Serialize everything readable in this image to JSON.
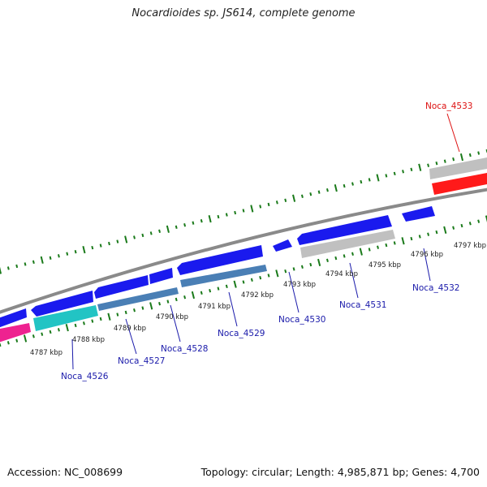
{
  "title": "Nocardioides sp. JS614, complete genome",
  "footer": {
    "accession_label": "Accession: NC_008699",
    "summary_label": "Topology: circular; Length: 4,985,871 bp; Genes: 4,700"
  },
  "colors": {
    "tick": "#1a7a1a",
    "backbone": "#8a8a8a",
    "gene_blue": "#1a1aee",
    "gene_cyan": "#22c4c4",
    "gene_grey": "#c0c0c0",
    "gene_red": "#ff1a1a",
    "gene_pink": "#ee2290",
    "gene_steel": "#4a7fb5",
    "label_blue": "#1a1aaa",
    "label_red": "#dd1111"
  },
  "scale_labels": [
    "4787 kbp",
    "4788 kbp",
    "4789 kbp",
    "4790 kbp",
    "4791 kbp",
    "4792 kbp",
    "4793 kbp",
    "4794 kbp",
    "4795 kbp",
    "4796 kbp",
    "4797 kbp"
  ],
  "gene_labels": [
    "Noca_4526",
    "Noca_4527",
    "Noca_4528",
    "Noca_4529",
    "Noca_4530",
    "Noca_4531",
    "Noca_4532",
    "Noca_4533"
  ]
}
